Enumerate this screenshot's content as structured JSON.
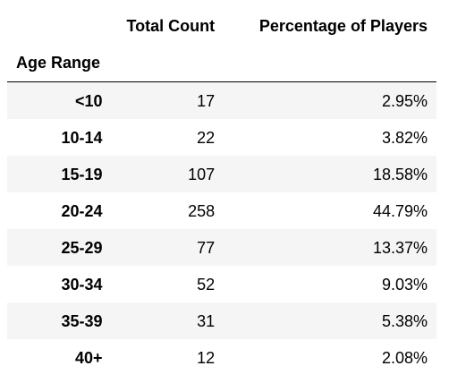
{
  "table": {
    "columns": [
      "Total Count",
      "Percentage of Players"
    ],
    "index_name": "Age Range",
    "rows": [
      {
        "label": "<10",
        "count": "17",
        "pct": "2.95%"
      },
      {
        "label": "10-14",
        "count": "22",
        "pct": "3.82%"
      },
      {
        "label": "15-19",
        "count": "107",
        "pct": "18.58%"
      },
      {
        "label": "20-24",
        "count": "258",
        "pct": "44.79%"
      },
      {
        "label": "25-29",
        "count": "77",
        "pct": "13.37%"
      },
      {
        "label": "30-34",
        "count": "52",
        "pct": "9.03%"
      },
      {
        "label": "35-39",
        "count": "31",
        "pct": "5.38%"
      },
      {
        "label": "40+",
        "count": "12",
        "pct": "2.08%"
      }
    ]
  },
  "colors": {
    "stripe": "#f5f5f5",
    "text": "#000000",
    "rule": "#000000"
  }
}
